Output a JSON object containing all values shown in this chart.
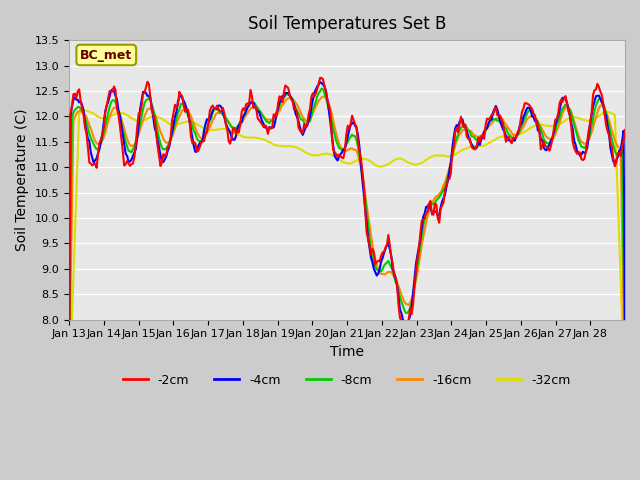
{
  "title": "Soil Temperatures Set B",
  "xlabel": "Time",
  "ylabel": "Soil Temperature (C)",
  "ylim": [
    8.0,
    13.5
  ],
  "yticks": [
    8.0,
    8.5,
    9.0,
    9.5,
    10.0,
    10.5,
    11.0,
    11.5,
    12.0,
    12.5,
    13.0,
    13.5
  ],
  "x_labels": [
    "Jan 13",
    "Jan 14",
    "Jan 15",
    "Jan 16",
    "Jan 17",
    "Jan 18",
    "Jan 19",
    "Jan 20",
    "Jan 21",
    "Jan 22",
    "Jan 23",
    "Jan 24",
    "Jan 25",
    "Jan 26",
    "Jan 27",
    "Jan 28"
  ],
  "series": {
    "-2cm": {
      "color": "#ff0000",
      "linewidth": 1.5
    },
    "-4cm": {
      "color": "#0000ff",
      "linewidth": 1.5
    },
    "-8cm": {
      "color": "#00cc00",
      "linewidth": 1.5
    },
    "-16cm": {
      "color": "#ff8800",
      "linewidth": 1.5
    },
    "-32cm": {
      "color": "#dddd00",
      "linewidth": 1.5
    }
  },
  "legend_label": "BC_met",
  "fig_bg": "#cccccc",
  "plot_bg": "#e8e8e8",
  "title_fontsize": 12,
  "label_fontsize": 10,
  "tick_fontsize": 8
}
